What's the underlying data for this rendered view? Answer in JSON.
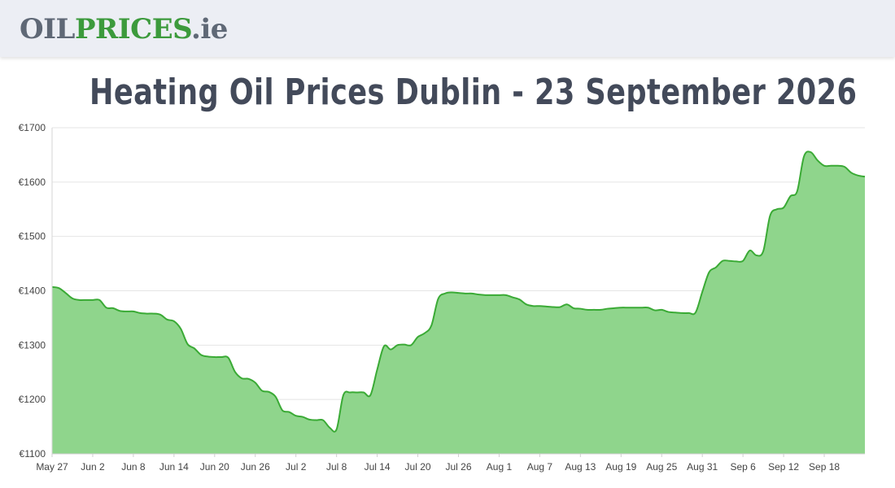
{
  "site": {
    "logo_part1": "OIL",
    "logo_part2": "PRICES",
    "logo_part3": ".ie"
  },
  "title": "Heating Oil Prices Dublin - 23 September 2026",
  "colors": {
    "header_bg": "#eceef4",
    "line": "#3aaa35",
    "area": "#8fd58c",
    "logo_gray": "#5f6876",
    "logo_green": "#3c9a3c",
    "title": "#434a5a"
  },
  "chart_data": {
    "type": "area",
    "title": "Heating Oil Prices Dublin - 23 September 2026",
    "xlabel": "",
    "ylabel": "",
    "ylim": [
      1100,
      1700
    ],
    "y_ticks": [
      1100,
      1200,
      1300,
      1400,
      1500,
      1600,
      1700
    ],
    "y_tick_labels": [
      "€1100",
      "€1200",
      "€1300",
      "€1400",
      "€1500",
      "€1600",
      "€1700"
    ],
    "x_range": [
      0,
      120
    ],
    "x_ticks": [
      0,
      6,
      12,
      18,
      24,
      30,
      36,
      42,
      48,
      54,
      60,
      66,
      72,
      78,
      84,
      90,
      96,
      102,
      108,
      114
    ],
    "x_tick_labels": [
      "May 27",
      "Jun 2",
      "Jun 8",
      "Jun 14",
      "Jun 20",
      "Jun 26",
      "Jul 2",
      "Jul 8",
      "Jul 14",
      "Jul 20",
      "Jul 26",
      "Aug 1",
      "Aug 7",
      "Aug 13",
      "Aug 19",
      "Aug 25",
      "Aug 31",
      "Sep 6",
      "Sep 12",
      "Sep 18"
    ],
    "grid": true,
    "legend": "none",
    "series": [
      {
        "name": "",
        "x": [
          0,
          1,
          2,
          3,
          4,
          5,
          6,
          7,
          8,
          9,
          10,
          11,
          12,
          13,
          14,
          15,
          16,
          17,
          18,
          19,
          20,
          21,
          22,
          23,
          24,
          25,
          26,
          27,
          28,
          29,
          30,
          31,
          32,
          33,
          34,
          35,
          36,
          37,
          38,
          39,
          40,
          41,
          42,
          43,
          44,
          45,
          46,
          47,
          48,
          49,
          50,
          51,
          52,
          53,
          54,
          55,
          56,
          57,
          58,
          59,
          60,
          61,
          62,
          63,
          64,
          65,
          66,
          67,
          68,
          69,
          70,
          71,
          72,
          73,
          74,
          75,
          76,
          77,
          78,
          79,
          80,
          81,
          82,
          83,
          84,
          85,
          86,
          87,
          88,
          89,
          90,
          91,
          92,
          93,
          94,
          95,
          96,
          97,
          98,
          99,
          100,
          101,
          102,
          103,
          104,
          105,
          106,
          107,
          108,
          109,
          110,
          111,
          112,
          113,
          114,
          115,
          116,
          117,
          118,
          119,
          120
        ],
        "values": [
          1407,
          1405,
          1396,
          1386,
          1383,
          1383,
          1383,
          1383,
          1369,
          1368,
          1363,
          1362,
          1362,
          1359,
          1358,
          1358,
          1356,
          1347,
          1344,
          1330,
          1302,
          1294,
          1282,
          1279,
          1278,
          1278,
          1277,
          1251,
          1239,
          1238,
          1231,
          1216,
          1214,
          1205,
          1180,
          1177,
          1170,
          1168,
          1163,
          1162,
          1162,
          1148,
          1145,
          1208,
          1213,
          1213,
          1213,
          1208,
          1255,
          1298,
          1292,
          1300,
          1301,
          1300,
          1315,
          1322,
          1336,
          1385,
          1395,
          1397,
          1396,
          1395,
          1395,
          1393,
          1392,
          1392,
          1392,
          1392,
          1388,
          1384,
          1375,
          1372,
          1372,
          1371,
          1370,
          1370,
          1375,
          1368,
          1367,
          1365,
          1365,
          1365,
          1367,
          1368,
          1369,
          1369,
          1369,
          1369,
          1369,
          1364,
          1365,
          1361,
          1360,
          1359,
          1359,
          1360,
          1398,
          1434,
          1443,
          1455,
          1455,
          1454,
          1455,
          1474,
          1465,
          1473,
          1538,
          1550,
          1553,
          1574,
          1583,
          1647,
          1655,
          1640,
          1630,
          1630,
          1630,
          1628,
          1617,
          1612,
          1610
        ]
      }
    ]
  }
}
